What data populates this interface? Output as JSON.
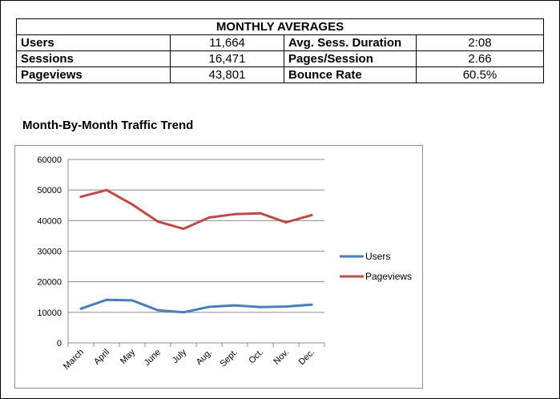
{
  "summary": {
    "title": "MONTHLY AVERAGES",
    "rows": [
      {
        "label1": "Users",
        "value1": "11,664",
        "label2": "Avg. Sess. Duration",
        "value2": "2:08"
      },
      {
        "label1": "Sessions",
        "value1": "16,471",
        "label2": "Pages/Session",
        "value2": "2.66"
      },
      {
        "label1": "Pageviews",
        "value1": "43,801",
        "label2": "Bounce Rate",
        "value2": "60.5%"
      }
    ]
  },
  "chart_data": {
    "type": "line",
    "title": "Month-By-Month Traffic Trend",
    "categories": [
      "March",
      "April",
      "May",
      "June",
      "July",
      "Aug.",
      "Sept.",
      "Oct.",
      "Nov.",
      "Dec."
    ],
    "series": [
      {
        "name": "Users",
        "color": "#4a7ebb",
        "values": [
          11200,
          14100,
          13900,
          10700,
          10000,
          11800,
          12300,
          11700,
          11900,
          12500
        ]
      },
      {
        "name": "Pageviews",
        "color": "#be4b48",
        "values": [
          47800,
          50000,
          45300,
          39700,
          37300,
          41000,
          42100,
          42400,
          39400,
          41800
        ]
      }
    ],
    "ylim": [
      0,
      60000
    ],
    "yticks": [
      "0",
      "10000",
      "20000",
      "30000",
      "40000",
      "50000",
      "60000"
    ],
    "grid": true,
    "legend": "right"
  }
}
